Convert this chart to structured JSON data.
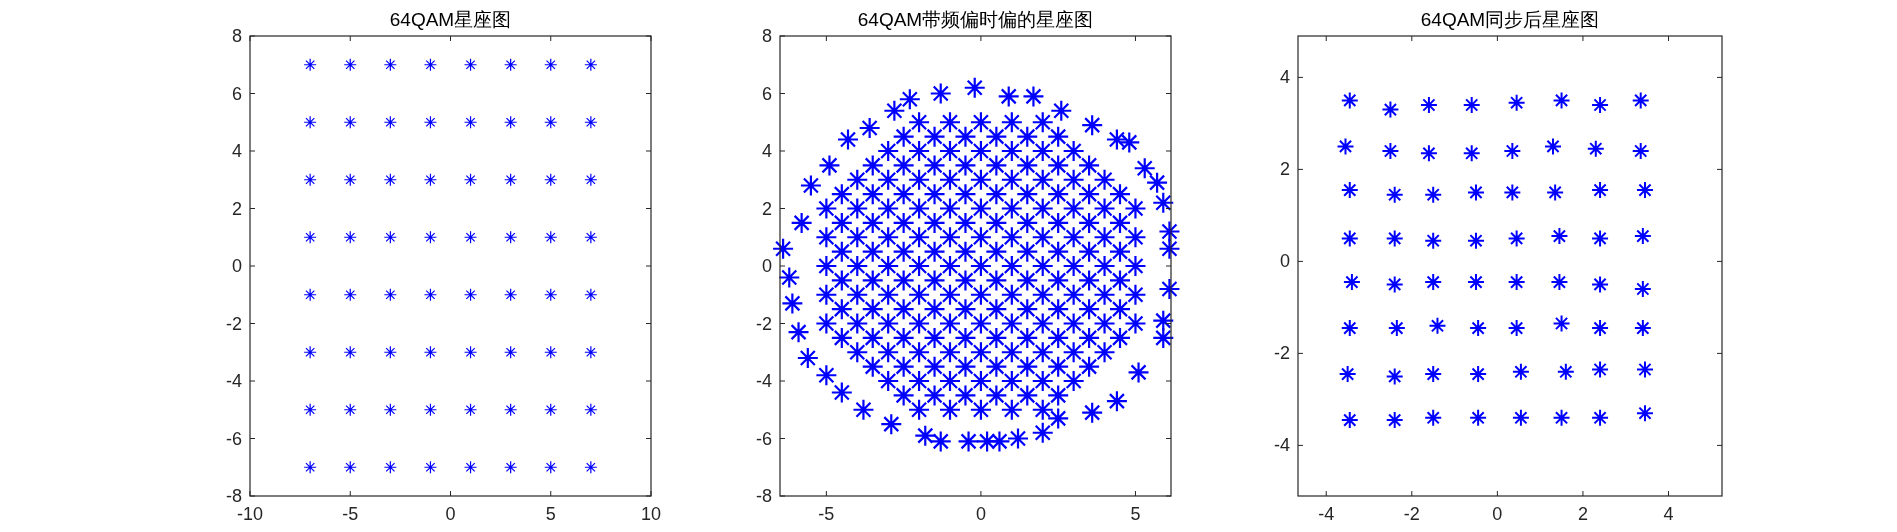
{
  "chart_data": [
    {
      "type": "scatter",
      "title": "64QAM星座图",
      "marker": "cross",
      "color": "#0000ff",
      "x": [
        -7,
        -5,
        -3,
        -1,
        1,
        3,
        5,
        7,
        -7,
        -5,
        -3,
        -1,
        1,
        3,
        5,
        7,
        -7,
        -5,
        -3,
        -1,
        1,
        3,
        5,
        7,
        -7,
        -5,
        -3,
        -1,
        1,
        3,
        5,
        7,
        -7,
        -5,
        -3,
        -1,
        1,
        3,
        5,
        7,
        -7,
        -5,
        -3,
        -1,
        1,
        3,
        5,
        7,
        -7,
        -5,
        -3,
        -1,
        1,
        3,
        5,
        7,
        -7,
        -5,
        -3,
        -1,
        1,
        3,
        5,
        7
      ],
      "values": [
        7,
        7,
        7,
        7,
        7,
        7,
        7,
        7,
        5,
        5,
        5,
        5,
        5,
        5,
        5,
        5,
        3,
        3,
        3,
        3,
        3,
        3,
        3,
        3,
        1,
        1,
        1,
        1,
        1,
        1,
        1,
        1,
        -1,
        -1,
        -1,
        -1,
        -1,
        -1,
        -1,
        -1,
        -3,
        -3,
        -3,
        -3,
        -3,
        -3,
        -3,
        -3,
        -5,
        -5,
        -5,
        -5,
        -5,
        -5,
        -5,
        -5,
        -7,
        -7,
        -7,
        -7,
        -7,
        -7,
        -7,
        -7
      ],
      "xlim": [
        -10,
        10
      ],
      "ylim": [
        -8,
        8
      ],
      "xticks": [
        -10,
        -5,
        0,
        5,
        10
      ],
      "yticks": [
        -8,
        -6,
        -4,
        -2,
        0,
        2,
        4,
        6,
        8
      ]
    },
    {
      "type": "scatter",
      "title": "64QAM带频偏时偏的星座图",
      "marker": "cross",
      "color": "#0000ff",
      "x": [
        -2,
        -1,
        0,
        1,
        2,
        -3,
        -2,
        -1,
        0,
        1,
        2,
        3,
        -4,
        -3,
        -2,
        -1,
        0,
        1,
        2,
        3,
        4,
        -5,
        -4,
        -3,
        -2,
        -1,
        0,
        1,
        2,
        3,
        4,
        5,
        -5,
        -4,
        -3,
        -2,
        -1,
        0,
        1,
        2,
        3,
        4,
        5,
        -5,
        -4,
        -3,
        -2,
        -1,
        0,
        1,
        2,
        3,
        4,
        5,
        -5,
        -4,
        -3,
        -2,
        -1,
        0,
        1,
        2,
        3,
        4,
        5,
        -5,
        -4,
        -3,
        -2,
        -1,
        0,
        1,
        2,
        3,
        4,
        5,
        -4,
        -3,
        -2,
        -1,
        0,
        1,
        2,
        3,
        4,
        -3,
        -2,
        -1,
        0,
        1,
        2,
        3,
        -2,
        -1,
        0,
        1,
        2,
        -2.5,
        -1.5,
        -0.5,
        0.5,
        1.5,
        2.5,
        -3.5,
        -2.5,
        -1.5,
        -0.5,
        0.5,
        1.5,
        2.5,
        3.5,
        -4.5,
        -3.5,
        -2.5,
        -1.5,
        -0.5,
        0.5,
        1.5,
        2.5,
        3.5,
        4.5,
        -4.5,
        -3.5,
        -2.5,
        -1.5,
        -0.5,
        0.5,
        1.5,
        2.5,
        3.5,
        4.5,
        -4.5,
        -3.5,
        -2.5,
        -1.5,
        -0.5,
        0.5,
        1.5,
        2.5,
        3.5,
        4.5,
        -4.5,
        -3.5,
        -2.5,
        -1.5,
        -0.5,
        0.5,
        1.5,
        2.5,
        3.5,
        4.5,
        -4.5,
        -3.5,
        -2.5,
        -1.5,
        -0.5,
        0.5,
        1.5,
        2.5,
        3.5,
        4.5,
        -4.5,
        -3.5,
        -2.5,
        -1.5,
        -0.5,
        0.5,
        1.5,
        2.5,
        3.5,
        4.5,
        -3.5,
        -2.5,
        -1.5,
        -0.5,
        0.5,
        1.5,
        2.5,
        3.5,
        -2.5,
        -1.5,
        -0.5,
        0.5,
        1.5,
        2.5,
        -6.4,
        -6.2,
        -5.8,
        -5.5,
        -4.9,
        -4.3,
        -3.6,
        -2.8,
        -2.3,
        -1.3,
        -0.2,
        0.9,
        1.7,
        2.6,
        3.6,
        4.4,
        4.8,
        5.3,
        5.7,
        5.9,
        6.1,
        6.1,
        6.1,
        5.9,
        5.9,
        5.1,
        4.4,
        3.6,
        2.5,
        2.0,
        1.2,
        0.6,
        0.2,
        -0.4,
        -1.3,
        -1.8,
        -2.9,
        -3.8,
        -4.5,
        -5.0,
        -5.6,
        -5.9,
        -6.1
      ],
      "values": [
        5,
        5,
        5,
        5,
        5,
        4,
        4,
        4,
        4,
        4,
        4,
        4,
        3,
        3,
        3,
        3,
        3,
        3,
        3,
        3,
        3,
        2,
        2,
        2,
        2,
        2,
        2,
        2,
        2,
        2,
        2,
        2,
        1,
        1,
        1,
        1,
        1,
        1,
        1,
        1,
        1,
        1,
        1,
        0,
        0,
        0,
        0,
        0,
        0,
        0,
        0,
        0,
        0,
        0,
        -1,
        -1,
        -1,
        -1,
        -1,
        -1,
        -1,
        -1,
        -1,
        -1,
        -1,
        -2,
        -2,
        -2,
        -2,
        -2,
        -2,
        -2,
        -2,
        -2,
        -2,
        -2,
        -3,
        -3,
        -3,
        -3,
        -3,
        -3,
        -3,
        -3,
        -3,
        -4,
        -4,
        -4,
        -4,
        -4,
        -4,
        -4,
        -5,
        -5,
        -5,
        -5,
        -5,
        4.5,
        4.5,
        4.5,
        4.5,
        4.5,
        4.5,
        3.5,
        3.5,
        3.5,
        3.5,
        3.5,
        3.5,
        3.5,
        3.5,
        2.5,
        2.5,
        2.5,
        2.5,
        2.5,
        2.5,
        2.5,
        2.5,
        2.5,
        2.5,
        1.5,
        1.5,
        1.5,
        1.5,
        1.5,
        1.5,
        1.5,
        1.5,
        1.5,
        1.5,
        0.5,
        0.5,
        0.5,
        0.5,
        0.5,
        0.5,
        0.5,
        0.5,
        0.5,
        0.5,
        -0.5,
        -0.5,
        -0.5,
        -0.5,
        -0.5,
        -0.5,
        -0.5,
        -0.5,
        -0.5,
        -0.5,
        -1.5,
        -1.5,
        -1.5,
        -1.5,
        -1.5,
        -1.5,
        -1.5,
        -1.5,
        -1.5,
        -1.5,
        -2.5,
        -2.5,
        -2.5,
        -2.5,
        -2.5,
        -2.5,
        -2.5,
        -2.5,
        -2.5,
        -2.5,
        -3.5,
        -3.5,
        -3.5,
        -3.5,
        -3.5,
        -3.5,
        -3.5,
        -3.5,
        -4.5,
        -4.5,
        -4.5,
        -4.5,
        -4.5,
        -4.5,
        0.6,
        -0.4,
        1.5,
        2.8,
        3.5,
        4.4,
        4.8,
        5.4,
        5.8,
        6.0,
        6.2,
        5.9,
        5.9,
        5.4,
        4.9,
        4.4,
        4.3,
        3.4,
        2.9,
        2.2,
        1.2,
        0.6,
        -0.8,
        -1.9,
        -2.5,
        -3.7,
        -4.7,
        -5.1,
        -5.3,
        -5.8,
        -6.0,
        -6.1,
        -6.1,
        -6.1,
        -6.1,
        -5.9,
        -5.5,
        -5.0,
        -4.4,
        -3.8,
        -3.2,
        -2.3,
        -1.3
      ],
      "xlim": [
        -6.5,
        6.15
      ],
      "ylim": [
        -8,
        8
      ],
      "xticks": [
        -5,
        0,
        5
      ],
      "yticks": [
        -8,
        -6,
        -4,
        -2,
        0,
        2,
        4,
        6,
        8
      ]
    },
    {
      "type": "scatter",
      "title": "64QAM同步后星座图",
      "marker": "cross",
      "color": "#0000ff",
      "x": [
        -3.45,
        -2.5,
        -1.6,
        -0.6,
        0.45,
        1.5,
        2.4,
        3.35,
        -3.55,
        -2.5,
        -1.6,
        -0.6,
        0.35,
        1.3,
        2.3,
        3.35,
        -3.45,
        -2.4,
        -1.5,
        -0.5,
        0.35,
        1.35,
        2.4,
        3.45,
        -3.45,
        -2.4,
        -1.5,
        -0.5,
        0.45,
        1.45,
        2.4,
        3.4,
        -3.4,
        -2.4,
        -1.5,
        -0.5,
        0.45,
        1.45,
        2.4,
        3.4,
        -3.45,
        -2.35,
        -1.4,
        -0.45,
        0.45,
        1.5,
        2.4,
        3.4,
        -3.5,
        -2.4,
        -1.5,
        -0.45,
        0.55,
        1.6,
        2.4,
        3.45,
        -3.45,
        -2.4,
        -1.5,
        -0.45,
        0.55,
        1.5,
        2.4,
        3.45
      ],
      "values": [
        3.5,
        3.3,
        3.4,
        3.4,
        3.45,
        3.5,
        3.4,
        3.5,
        2.5,
        2.4,
        2.35,
        2.35,
        2.4,
        2.5,
        2.45,
        2.4,
        1.55,
        1.45,
        1.45,
        1.5,
        1.5,
        1.5,
        1.55,
        1.55,
        0.5,
        0.5,
        0.45,
        0.45,
        0.5,
        0.55,
        0.5,
        0.55,
        -0.45,
        -0.5,
        -0.45,
        -0.45,
        -0.45,
        -0.45,
        -0.5,
        -0.6,
        -1.45,
        -1.45,
        -1.4,
        -1.45,
        -1.45,
        -1.35,
        -1.45,
        -1.45,
        -2.45,
        -2.5,
        -2.45,
        -2.45,
        -2.4,
        -2.4,
        -2.35,
        -2.35,
        -3.45,
        -3.45,
        -3.4,
        -3.4,
        -3.4,
        -3.4,
        -3.4,
        -3.3
      ],
      "xlim": [
        -4.66,
        5.25
      ],
      "ylim": [
        -5.1,
        4.9
      ],
      "xticks": [
        -4,
        -2,
        0,
        2,
        4
      ],
      "yticks": [
        -4,
        -2,
        0,
        2,
        4
      ]
    }
  ]
}
